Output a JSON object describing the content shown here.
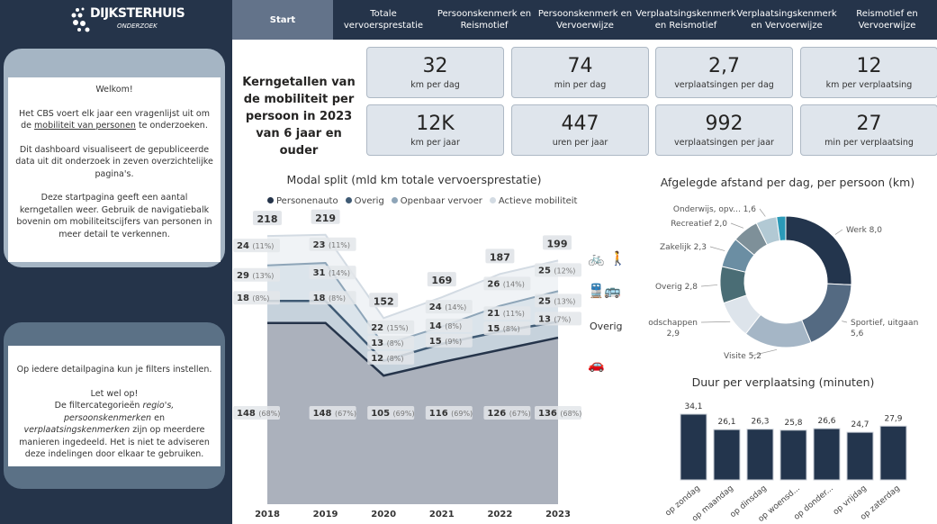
{
  "header": {
    "logo_name": "DIJKSTERHUIS",
    "logo_sub": "ONDERZOEK",
    "tabs": [
      "Start",
      "Totale vervoersprestatie",
      "Persoonskenmerk en Reismotief",
      "Persoonskenmerk en Vervoerwijze",
      "Verplaatsingskenmerk en Reismotief",
      "Verplaatsingskenmerk en Vervoerwijze",
      "Reismotief en Vervoerwijze"
    ],
    "active_tab": "Start"
  },
  "sidebar": {
    "card1": {
      "welcome": "Welkom!",
      "p1_a": "Het CBS voert elk jaar een vragenlijst uit om de ",
      "p1_link": "mobiliteit van personen",
      "p1_b": " te onderzoeken.",
      "p2": "Dit dashboard visualiseert de gepubliceerde data uit dit onderzoek in zeven overzichtelijke pagina's.",
      "p3": "Deze startpagina geeft een aantal kerngetallen weer. Gebruik de navigatiebalk bovenin om mobiliteitscijfers van personen in meer detail te verkennen."
    },
    "card2": {
      "p1": "Op iedere detailpagina kun je filters instellen.",
      "p2": "Let wel op!",
      "p3_a": "De filtercategorieën ",
      "p3_i1": "regio's, persoonskenmerken",
      "p3_b": " en ",
      "p3_i2": "verplaatsingskenmerken",
      "p3_c": " zijn op meerdere manieren ingedeeld. Het is niet te adviseren deze indelingen door elkaar te gebruiken."
    }
  },
  "kpi_title": "Kerngetallen van de mobiliteit per persoon in 2023 van 6 jaar en ouder",
  "kpis": [
    {
      "value": "32",
      "label": "km per dag"
    },
    {
      "value": "74",
      "label": "min per dag"
    },
    {
      "value": "2,7",
      "label": "verplaatsingen per dag"
    },
    {
      "value": "12",
      "label": "km per verplaatsing"
    },
    {
      "value": "12K",
      "label": "km per jaar"
    },
    {
      "value": "447",
      "label": "uren per jaar"
    },
    {
      "value": "992",
      "label": "verplaatsingen per jaar"
    },
    {
      "value": "27",
      "label": "min per verplaatsing"
    }
  ],
  "chart_data": [
    {
      "type": "area",
      "title": "Modal split (mld km totale vervoersprestatie)",
      "stacked": true,
      "categories": [
        "2018",
        "2019",
        "2020",
        "2021",
        "2022",
        "2023"
      ],
      "totals": [
        "218",
        "219",
        "152",
        "169",
        "187",
        "199"
      ],
      "series": [
        {
          "name": "Personenauto",
          "color": "#25344a",
          "fill": "#a7adb8",
          "end_label": "",
          "values": [
            148,
            148,
            105,
            116,
            126,
            136
          ],
          "pct": [
            "68%",
            "67%",
            "69%",
            "69%",
            "67%",
            "68%"
          ]
        },
        {
          "name": "Overig",
          "color": "#3f5a74",
          "fill": "#c3cfda",
          "end_label": "Overig",
          "values": [
            18,
            18,
            12,
            15,
            15,
            13
          ],
          "pct": [
            "8%",
            "8%",
            "8%",
            "9%",
            "8%",
            "7%"
          ]
        },
        {
          "name": "Openbaar vervoer",
          "color": "#8ea5b8",
          "fill": "#d8e2ea",
          "end_label": "",
          "values": [
            29,
            31,
            13,
            14,
            21,
            25
          ],
          "pct": [
            "13%",
            "14%",
            "8%",
            "8%",
            "11%",
            "13%"
          ]
        },
        {
          "name": "Actieve mobiliteit",
          "color": "#d3dbe3",
          "fill": "#eef2f5",
          "end_label": "",
          "values": [
            24,
            23,
            22,
            24,
            26,
            25
          ],
          "pct": [
            "11%",
            "11%",
            "15%",
            "14%",
            "14%",
            "12%"
          ]
        }
      ],
      "legend_position": "top",
      "grid": false
    },
    {
      "type": "pie",
      "donut": true,
      "title": "Afgelegde afstand per dag, per persoon (km)",
      "slices": [
        {
          "label": "Werk",
          "value": "8,0",
          "v": 8.0,
          "color": "#23354d"
        },
        {
          "label": "Sportief, uitgaan",
          "value": "5,6",
          "v": 5.6,
          "color": "#546a82"
        },
        {
          "label": "Visite",
          "value": "5,2",
          "v": 5.2,
          "color": "#a5b6c6"
        },
        {
          "label": "Boodschappen",
          "value": "2,9",
          "v": 2.9,
          "color": "#dde4eb"
        },
        {
          "label": "Overig",
          "value": "2,8",
          "v": 2.8,
          "color": "#4a6d75"
        },
        {
          "label": "Zakelijk",
          "value": "2,3",
          "v": 2.3,
          "color": "#6b8ea3"
        },
        {
          "label": "Recreatief",
          "value": "2,0",
          "v": 2.0,
          "color": "#7e9099"
        },
        {
          "label": "Onderwijs, opv...",
          "value": "1,6",
          "v": 1.6,
          "color": "#b2c9d4"
        },
        {
          "label": "",
          "value": "",
          "v": 0.7,
          "color": "#2b9ab8"
        }
      ]
    },
    {
      "type": "bar",
      "title": "Duur per verplaatsing (minuten)",
      "color": "#23354d",
      "categories": [
        "op zondag",
        "op maandag",
        "op dinsdag",
        "op woensd...",
        "op donder...",
        "op vrijdag",
        "op zaterdag"
      ],
      "values": [
        34.1,
        26.1,
        26.3,
        25.8,
        26.6,
        24.7,
        27.9
      ],
      "labels": [
        "34,1",
        "26,1",
        "26,3",
        "25,8",
        "26,6",
        "24,7",
        "27,9"
      ]
    }
  ]
}
